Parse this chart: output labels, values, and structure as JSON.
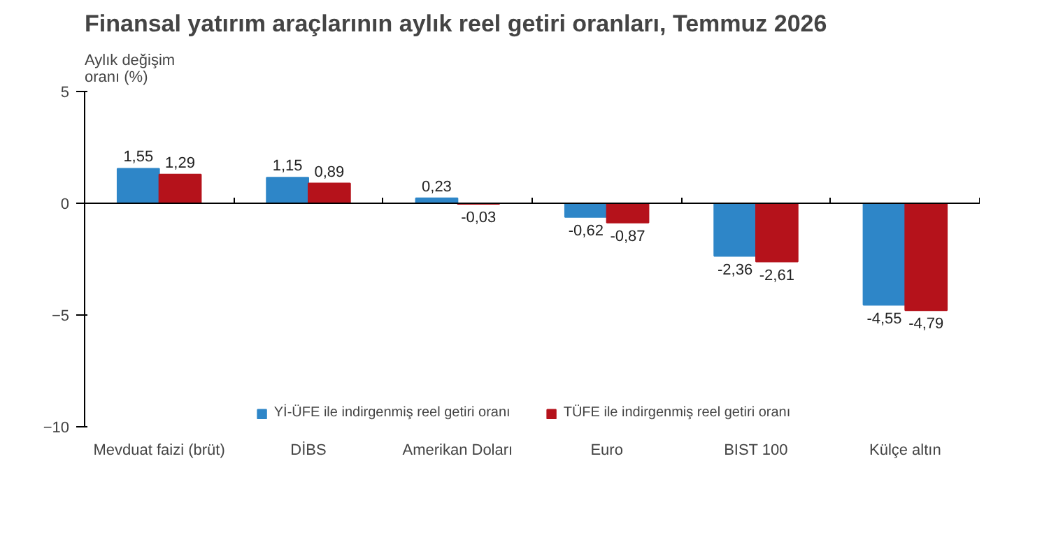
{
  "chart_data": {
    "type": "bar",
    "title": "Finansal yatırım araçlarının aylık reel getiri oranları, Temmuz 2026",
    "ylabel": "Aylık değişim\noranı (%)",
    "categories": [
      "Mevduat faizi (brüt)",
      "DİBS",
      "Amerikan Doları",
      "Euro",
      "BIST 100",
      "Külçe altın"
    ],
    "series": [
      {
        "name": "Yİ-ÜFE ile indirgenmiş reel getiri oranı",
        "color": "#2e86c8",
        "values": [
          1.55,
          1.15,
          0.23,
          -0.62,
          -2.36,
          -4.55
        ],
        "value_labels": [
          "1,55",
          "1,15",
          "0,23",
          "-0,62",
          "-2,36",
          "-4,55"
        ]
      },
      {
        "name": "TÜFE ile indirgenmiş reel getiri oranı",
        "color": "#b5121b",
        "values": [
          1.29,
          0.89,
          -0.03,
          -0.87,
          -2.61,
          -4.79
        ],
        "value_labels": [
          "1,29",
          "0,89",
          "-0,03",
          "-0,87",
          "-2,61",
          "-4,79"
        ]
      }
    ],
    "ylim": [
      -10,
      5
    ],
    "yticks": [
      -10,
      -5,
      0,
      5
    ],
    "legend": "bottom"
  }
}
